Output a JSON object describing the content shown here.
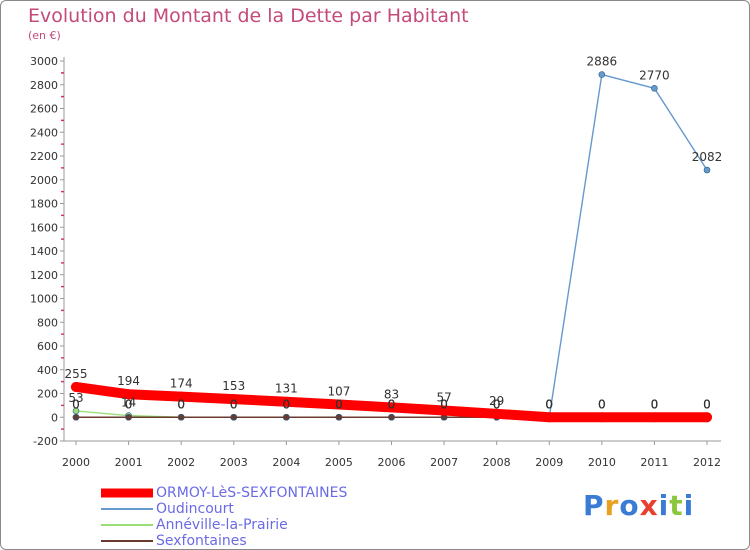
{
  "chart_data": {
    "type": "line",
    "title": "Evolution du Montant de la Dette par Habitant",
    "subtitle": "(en €)",
    "x": [
      "2000",
      "2001",
      "2002",
      "2003",
      "2004",
      "2005",
      "2006",
      "2007",
      "2008",
      "2009",
      "2010",
      "2011",
      "2012"
    ],
    "ylim": [
      -200,
      3000
    ],
    "yticks": [
      -200,
      0,
      200,
      400,
      600,
      800,
      1000,
      1200,
      1400,
      1600,
      1800,
      2000,
      2200,
      2400,
      2600,
      2800,
      3000
    ],
    "grid": false,
    "legend_position": "bottom-left",
    "series": [
      {
        "name": "ORMOY-LèS-SEXFONTAINES",
        "color": "#ff0000",
        "values": [
          255,
          194,
          174,
          153,
          131,
          107,
          83,
          57,
          29,
          0,
          0,
          0,
          0
        ]
      },
      {
        "name": "Oudincourt",
        "color": "#6699cc",
        "values": [
          0,
          0,
          0,
          0,
          0,
          0,
          0,
          0,
          0,
          0,
          2886,
          2770,
          2082
        ]
      },
      {
        "name": "Annéville-la-Prairie",
        "color": "#99dd77",
        "values": [
          53,
          14,
          0,
          0,
          0,
          0,
          0,
          0,
          0,
          0,
          0,
          0,
          0
        ]
      },
      {
        "name": "Sexfontaines",
        "color": "#6b3a2e",
        "values": [
          0,
          0,
          0,
          0,
          0,
          0,
          0,
          0,
          0,
          0,
          0,
          0,
          0
        ]
      }
    ],
    "data_labels": {
      "ORMOY-LèS-SEXFONTAINES": [
        "255",
        "194",
        "174",
        "153",
        "131",
        "107",
        "83",
        "57",
        "29",
        "0",
        "0",
        "0",
        "0"
      ],
      "Oudincourt": [
        "0",
        "0",
        "0",
        "0",
        "0",
        "0",
        "0",
        "0",
        "0",
        "0",
        "2886",
        "2770",
        "2082"
      ],
      "Annéville-la-Prairie": [
        "53",
        "14",
        "0",
        "0",
        "0",
        "0",
        "0",
        "0",
        "0",
        "0",
        "0",
        "0",
        "0"
      ],
      "Sexfontaines": [
        "0",
        "0",
        "0",
        "0",
        "0",
        "0",
        "0",
        "0",
        "0",
        "0",
        "0",
        "0",
        "0"
      ]
    }
  },
  "logo": {
    "letters": [
      "P",
      "r",
      "o",
      "x",
      "i",
      "t",
      "i"
    ],
    "colors": [
      "#3a7bd5",
      "#e8a020",
      "#3a7bd5",
      "#e84030",
      "#3a7bd5",
      "#8cc63f",
      "#3a7bd5"
    ]
  }
}
